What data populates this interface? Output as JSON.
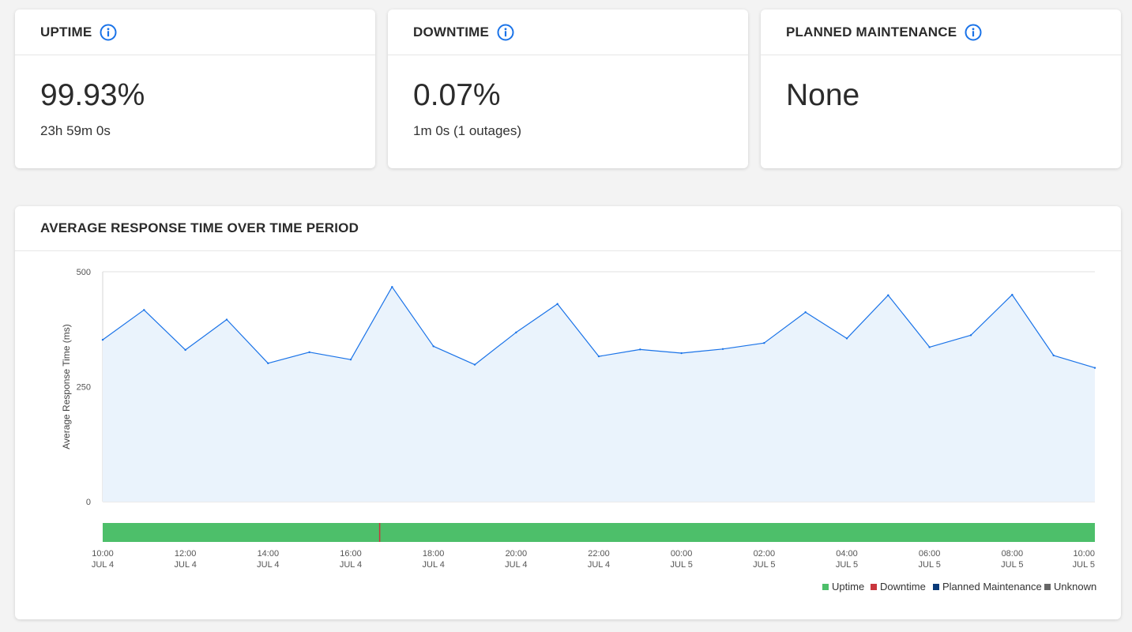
{
  "colors": {
    "info_icon": "#1a73e8",
    "line": "#1a73e8",
    "area_fill": "#eaf3fc",
    "uptime": "#4dbf6a",
    "downtime": "#c9363d",
    "planned_maintenance": "#0a3a78",
    "unknown": "#666666"
  },
  "uptime_card": {
    "title": "UPTIME",
    "value": "99.93%",
    "sub": "23h 59m 0s",
    "icon": "info-icon"
  },
  "downtime_card": {
    "title": "DOWNTIME",
    "value": "0.07%",
    "sub": "1m 0s (1 outages)",
    "icon": "info-icon"
  },
  "maintenance_card": {
    "title": "PLANNED MAINTENANCE",
    "value": "None",
    "icon": "info-icon"
  },
  "chart_card": {
    "title": "AVERAGE RESPONSE TIME OVER TIME PERIOD"
  },
  "chart_data": {
    "type": "area",
    "ylabel": "Average Response Time (ms)",
    "ylim": [
      0,
      500
    ],
    "yticks": [
      0,
      250,
      500
    ],
    "x_hours": [
      0,
      1,
      2,
      3,
      4,
      5,
      6,
      7,
      8,
      9,
      10,
      11,
      12,
      13,
      14,
      15,
      16,
      17,
      18,
      19,
      20,
      21,
      22,
      23,
      24
    ],
    "series": [
      {
        "values": [
          352,
          417,
          330,
          396,
          301,
          325,
          309,
          467,
          338,
          298,
          368,
          430,
          316,
          331,
          323,
          332,
          345,
          412,
          355,
          449,
          336,
          362,
          450,
          318,
          291
        ]
      }
    ],
    "x_tick_labels": [
      [
        "10:00",
        "JUL 4"
      ],
      [
        "12:00",
        "JUL 4"
      ],
      [
        "14:00",
        "JUL 4"
      ],
      [
        "16:00",
        "JUL 4"
      ],
      [
        "18:00",
        "JUL 4"
      ],
      [
        "20:00",
        "JUL 4"
      ],
      [
        "22:00",
        "JUL 4"
      ],
      [
        "00:00",
        "JUL 5"
      ],
      [
        "02:00",
        "JUL 5"
      ],
      [
        "04:00",
        "JUL 5"
      ],
      [
        "06:00",
        "JUL 5"
      ],
      [
        "08:00",
        "JUL 5"
      ],
      [
        "10:00",
        "JUL 5"
      ]
    ],
    "status_bar": {
      "base": "Uptime",
      "outages_at_hour": [
        6.7
      ]
    },
    "legend": [
      "Uptime",
      "Downtime",
      "Planned Maintenance",
      "Unknown"
    ],
    "legend_position": "bottom-right",
    "grid": false
  }
}
